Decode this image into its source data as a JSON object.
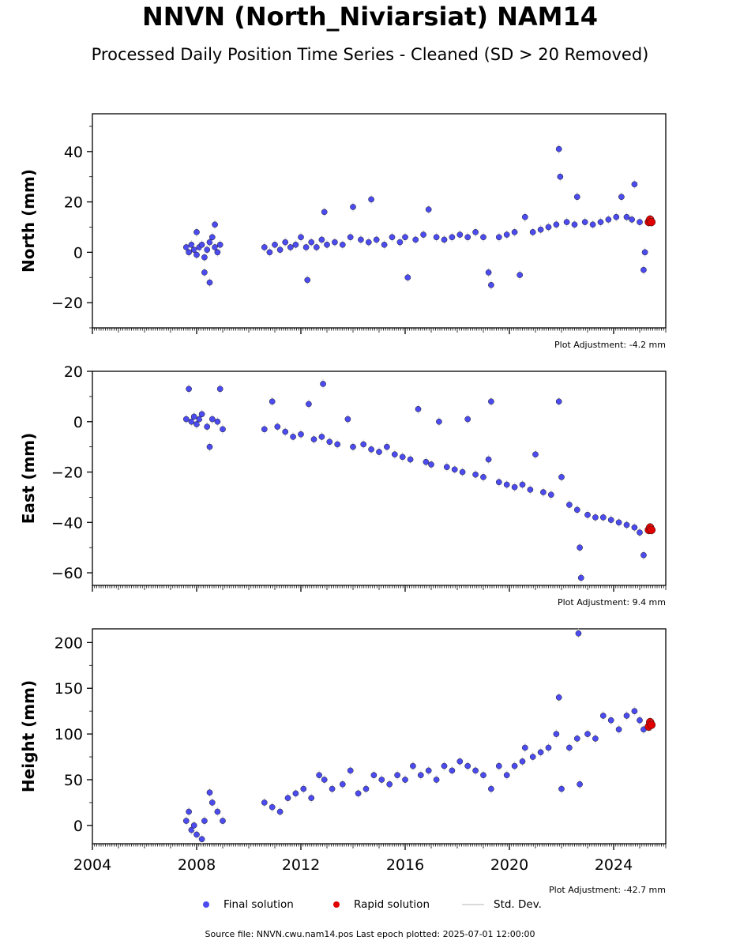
{
  "header": {
    "title": "NNVN (North_Niviarsiat) NAM14",
    "subtitle": "Processed Daily Position Time Series - Cleaned (SD > 20 Removed)"
  },
  "legend": {
    "final_label": "Final solution",
    "rapid_label": "Rapid solution",
    "stddev_label": "Std. Dev."
  },
  "footer": {
    "source": "Source file: NNVN.cwu.nam14.pos  Last epoch plotted: 2025-07-01 12:00:00"
  },
  "colors": {
    "final": "#4b4bf0",
    "rapid": "#e00000",
    "stddev": "#cfcfcf",
    "marker_edge": "#1a1a1a"
  },
  "chart_data": [
    {
      "type": "scatter",
      "ylabel": "North (mm)",
      "adjustment": "Plot Adjustment: -4.2 mm",
      "xlim": [
        2004.0,
        2026.0
      ],
      "ylim": [
        -30,
        55
      ],
      "yticks": [
        -20,
        0,
        20,
        40
      ],
      "ytick_labels": [
        "−20",
        "0",
        "20",
        "40"
      ],
      "ygrid": false,
      "series": [
        {
          "color_key": "final",
          "points": [
            [
              2007.6,
              2
            ],
            [
              2007.7,
              0
            ],
            [
              2007.8,
              3
            ],
            [
              2007.9,
              1
            ],
            [
              2008.0,
              -1
            ],
            [
              2008.1,
              2
            ],
            [
              2008.2,
              3
            ],
            [
              2008.3,
              -2
            ],
            [
              2008.4,
              1
            ],
            [
              2008.5,
              4
            ],
            [
              2008.6,
              6
            ],
            [
              2008.7,
              2
            ],
            [
              2008.8,
              0
            ],
            [
              2008.9,
              3
            ],
            [
              2008.0,
              8
            ],
            [
              2008.5,
              -12
            ],
            [
              2008.3,
              -8
            ],
            [
              2008.7,
              11
            ],
            [
              2010.6,
              2
            ],
            [
              2010.8,
              0
            ],
            [
              2011.0,
              3
            ],
            [
              2011.2,
              1
            ],
            [
              2011.4,
              4
            ],
            [
              2011.6,
              2
            ],
            [
              2011.8,
              3
            ],
            [
              2012.0,
              6
            ],
            [
              2012.2,
              2
            ],
            [
              2012.25,
              -11
            ],
            [
              2012.4,
              4
            ],
            [
              2012.6,
              2
            ],
            [
              2012.8,
              5
            ],
            [
              2012.9,
              16
            ],
            [
              2013.0,
              3
            ],
            [
              2013.3,
              4
            ],
            [
              2013.6,
              3
            ],
            [
              2013.9,
              6
            ],
            [
              2014.0,
              18
            ],
            [
              2014.3,
              5
            ],
            [
              2014.6,
              4
            ],
            [
              2014.7,
              21
            ],
            [
              2014.9,
              5
            ],
            [
              2015.2,
              3
            ],
            [
              2015.5,
              6
            ],
            [
              2015.8,
              4
            ],
            [
              2016.0,
              6
            ],
            [
              2016.1,
              -10
            ],
            [
              2016.4,
              5
            ],
            [
              2016.7,
              7
            ],
            [
              2016.9,
              17
            ],
            [
              2017.2,
              6
            ],
            [
              2017.5,
              5
            ],
            [
              2017.8,
              6
            ],
            [
              2018.1,
              7
            ],
            [
              2018.4,
              6
            ],
            [
              2018.7,
              8
            ],
            [
              2019.0,
              6
            ],
            [
              2019.2,
              -8
            ],
            [
              2019.3,
              -13
            ],
            [
              2019.6,
              6
            ],
            [
              2019.9,
              7
            ],
            [
              2020.2,
              8
            ],
            [
              2020.4,
              -9
            ],
            [
              2020.6,
              14
            ],
            [
              2020.9,
              8
            ],
            [
              2021.2,
              9
            ],
            [
              2021.5,
              10
            ],
            [
              2021.8,
              11
            ],
            [
              2021.9,
              41
            ],
            [
              2021.95,
              30
            ],
            [
              2022.2,
              12
            ],
            [
              2022.5,
              11
            ],
            [
              2022.6,
              22
            ],
            [
              2022.9,
              12
            ],
            [
              2023.2,
              11
            ],
            [
              2023.5,
              12
            ],
            [
              2023.8,
              13
            ],
            [
              2024.1,
              14
            ],
            [
              2024.3,
              22
            ],
            [
              2024.5,
              14
            ],
            [
              2024.7,
              13
            ],
            [
              2024.8,
              27
            ],
            [
              2025.0,
              12
            ],
            [
              2025.15,
              -7
            ],
            [
              2025.2,
              0
            ]
          ]
        },
        {
          "color_key": "rapid",
          "points": [
            [
              2025.35,
              12
            ],
            [
              2025.4,
              13
            ],
            [
              2025.45,
              12
            ]
          ]
        }
      ]
    },
    {
      "type": "scatter",
      "ylabel": "East (mm)",
      "adjustment": "Plot Adjustment: 9.4 mm",
      "xlim": [
        2004.0,
        2026.0
      ],
      "ylim": [
        -65,
        20
      ],
      "yticks": [
        -60,
        -40,
        -20,
        0,
        20
      ],
      "ytick_labels": [
        "−60",
        "−40",
        "−20",
        "0",
        "20"
      ],
      "ygrid": false,
      "series": [
        {
          "color_key": "final",
          "points": [
            [
              2007.6,
              1
            ],
            [
              2007.7,
              13
            ],
            [
              2007.8,
              0
            ],
            [
              2007.9,
              2
            ],
            [
              2008.0,
              -1
            ],
            [
              2008.1,
              1
            ],
            [
              2008.2,
              3
            ],
            [
              2008.4,
              -2
            ],
            [
              2008.5,
              -10
            ],
            [
              2008.6,
              1
            ],
            [
              2008.8,
              0
            ],
            [
              2008.9,
              13
            ],
            [
              2009.0,
              -3
            ],
            [
              2010.6,
              -3
            ],
            [
              2010.9,
              8
            ],
            [
              2011.1,
              -2
            ],
            [
              2011.4,
              -4
            ],
            [
              2011.7,
              -6
            ],
            [
              2012.0,
              -5
            ],
            [
              2012.3,
              7
            ],
            [
              2012.5,
              -7
            ],
            [
              2012.8,
              -6
            ],
            [
              2012.85,
              15
            ],
            [
              2013.1,
              -8
            ],
            [
              2013.4,
              -9
            ],
            [
              2013.8,
              1
            ],
            [
              2014.0,
              -10
            ],
            [
              2014.4,
              -9
            ],
            [
              2014.7,
              -11
            ],
            [
              2015.0,
              -12
            ],
            [
              2015.3,
              -10
            ],
            [
              2015.6,
              -13
            ],
            [
              2015.9,
              -14
            ],
            [
              2016.2,
              -15
            ],
            [
              2016.5,
              5
            ],
            [
              2016.8,
              -16
            ],
            [
              2017.0,
              -17
            ],
            [
              2017.3,
              0
            ],
            [
              2017.6,
              -18
            ],
            [
              2017.9,
              -19
            ],
            [
              2018.2,
              -20
            ],
            [
              2018.4,
              1
            ],
            [
              2018.7,
              -21
            ],
            [
              2019.0,
              -22
            ],
            [
              2019.2,
              -15
            ],
            [
              2019.3,
              8
            ],
            [
              2019.6,
              -24
            ],
            [
              2019.9,
              -25
            ],
            [
              2020.2,
              -26
            ],
            [
              2020.5,
              -25
            ],
            [
              2020.8,
              -27
            ],
            [
              2021.0,
              -13
            ],
            [
              2021.3,
              -28
            ],
            [
              2021.6,
              -29
            ],
            [
              2021.9,
              8
            ],
            [
              2022.0,
              -22
            ],
            [
              2022.3,
              -33
            ],
            [
              2022.6,
              -35
            ],
            [
              2022.7,
              -50
            ],
            [
              2022.75,
              -62
            ],
            [
              2023.0,
              -37
            ],
            [
              2023.3,
              -38
            ],
            [
              2023.6,
              -38
            ],
            [
              2023.9,
              -39
            ],
            [
              2024.2,
              -40
            ],
            [
              2024.5,
              -41
            ],
            [
              2024.8,
              -42
            ],
            [
              2025.0,
              -44
            ],
            [
              2025.15,
              -53
            ]
          ]
        },
        {
          "color_key": "rapid",
          "points": [
            [
              2025.35,
              -43
            ],
            [
              2025.4,
              -42
            ],
            [
              2025.45,
              -43
            ]
          ]
        }
      ]
    },
    {
      "type": "scatter",
      "ylabel": "Height (mm)",
      "adjustment": "Plot Adjustment: -42.7 mm",
      "xlim": [
        2004.0,
        2026.0
      ],
      "ylim": [
        -20,
        215
      ],
      "yticks": [
        0,
        50,
        100,
        150,
        200
      ],
      "ytick_labels": [
        "0",
        "50",
        "100",
        "150",
        "200"
      ],
      "xticks": [
        2004,
        2008,
        2012,
        2016,
        2020,
        2024
      ],
      "xtick_labels": [
        "2004",
        "2008",
        "2012",
        "2016",
        "2020",
        "2024"
      ],
      "ygrid": false,
      "series": [
        {
          "color_key": "final",
          "points": [
            [
              2007.6,
              5
            ],
            [
              2007.7,
              15
            ],
            [
              2007.8,
              -5
            ],
            [
              2007.9,
              0
            ],
            [
              2008.0,
              -10
            ],
            [
              2008.2,
              -15
            ],
            [
              2008.3,
              5
            ],
            [
              2008.5,
              36
            ],
            [
              2008.6,
              25
            ],
            [
              2008.8,
              15
            ],
            [
              2009.0,
              5
            ],
            [
              2010.6,
              25
            ],
            [
              2010.9,
              20
            ],
            [
              2011.2,
              15
            ],
            [
              2011.5,
              30
            ],
            [
              2011.8,
              35
            ],
            [
              2012.1,
              40
            ],
            [
              2012.4,
              30
            ],
            [
              2012.7,
              55
            ],
            [
              2012.9,
              50
            ],
            [
              2013.2,
              40
            ],
            [
              2013.6,
              45
            ],
            [
              2013.9,
              60
            ],
            [
              2014.2,
              35
            ],
            [
              2014.5,
              40
            ],
            [
              2014.8,
              55
            ],
            [
              2015.1,
              50
            ],
            [
              2015.4,
              45
            ],
            [
              2015.7,
              55
            ],
            [
              2016.0,
              50
            ],
            [
              2016.3,
              65
            ],
            [
              2016.6,
              55
            ],
            [
              2016.9,
              60
            ],
            [
              2017.2,
              50
            ],
            [
              2017.5,
              65
            ],
            [
              2017.8,
              60
            ],
            [
              2018.1,
              70
            ],
            [
              2018.4,
              65
            ],
            [
              2018.7,
              60
            ],
            [
              2019.0,
              55
            ],
            [
              2019.3,
              40
            ],
            [
              2019.6,
              65
            ],
            [
              2019.9,
              55
            ],
            [
              2020.2,
              65
            ],
            [
              2020.5,
              70
            ],
            [
              2020.6,
              85
            ],
            [
              2020.9,
              75
            ],
            [
              2021.2,
              80
            ],
            [
              2021.5,
              85
            ],
            [
              2021.8,
              100
            ],
            [
              2021.9,
              140
            ],
            [
              2022.0,
              40
            ],
            [
              2022.3,
              85
            ],
            [
              2022.6,
              95
            ],
            [
              2022.65,
              210
            ],
            [
              2022.7,
              45
            ],
            [
              2023.0,
              100
            ],
            [
              2023.3,
              95
            ],
            [
              2023.6,
              120
            ],
            [
              2023.9,
              115
            ],
            [
              2024.2,
              105
            ],
            [
              2024.5,
              120
            ],
            [
              2024.8,
              125
            ],
            [
              2025.0,
              115
            ],
            [
              2025.15,
              105
            ]
          ]
        },
        {
          "color_key": "rapid",
          "points": [
            [
              2025.35,
              108
            ],
            [
              2025.4,
              113
            ],
            [
              2025.45,
              110
            ]
          ]
        }
      ]
    }
  ]
}
